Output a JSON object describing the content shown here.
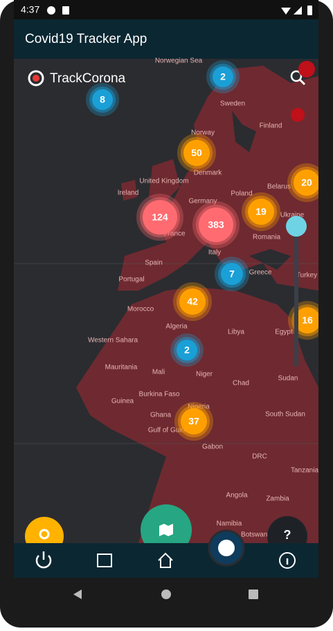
{
  "status_bar": {
    "time": "4:37"
  },
  "app_bar": {
    "title": "Covid19 Tracker App"
  },
  "map": {
    "brand": "TrackCorona",
    "clusters": [
      {
        "count": 8,
        "color": "#1a9fd6"
      },
      {
        "count": 2,
        "color": "#1a9fd6"
      },
      {
        "count": 50,
        "color": "#ffa000"
      },
      {
        "count": 124,
        "color": "#ff6b70"
      },
      {
        "count": 383,
        "color": "#ff6b70"
      },
      {
        "count": 19,
        "color": "#ffa000"
      },
      {
        "count": 20,
        "color": "#ffa000"
      },
      {
        "count": 7,
        "color": "#1a9fd6"
      },
      {
        "count": 42,
        "color": "#ffa000"
      },
      {
        "count": 16,
        "color": "#ffa000"
      },
      {
        "count": 2,
        "color": "#1a9fd6"
      },
      {
        "count": 37,
        "color": "#ffa000"
      }
    ],
    "labels": [
      "Norwegian Sea",
      "Sweden",
      "Finland",
      "Norway",
      "Denmark",
      "Ireland",
      "United Kingdom",
      "Germany",
      "Poland",
      "Belarus",
      "Ukraine",
      "France",
      "Romania",
      "Italy",
      "Spain",
      "Portugal",
      "Greece",
      "Turkey",
      "Morocco",
      "Algeria",
      "Libya",
      "Egypt",
      "Western Sahara",
      "Mauritania",
      "Mali",
      "Niger",
      "Chad",
      "Sudan",
      "Burkina Faso",
      "Guinea",
      "Ghana",
      "Nigeria",
      "Gulf of Guinea",
      "South Sudan",
      "Gabon",
      "DRC",
      "Tanzania",
      "Angola",
      "Zambia",
      "Namibia",
      "Botswana"
    ]
  },
  "help_button": "?"
}
